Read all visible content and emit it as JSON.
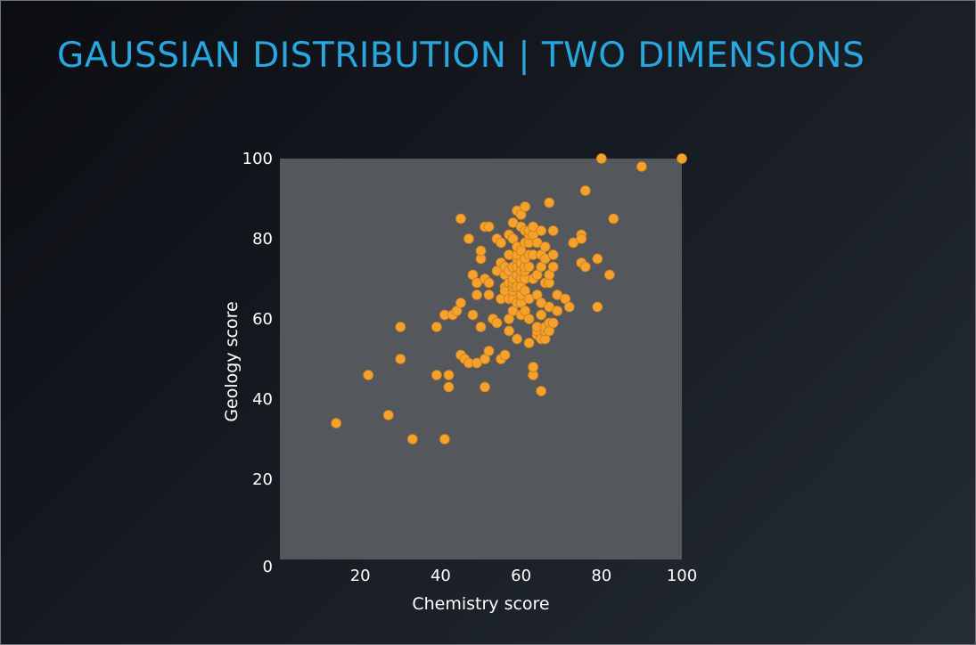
{
  "slide": {
    "title": "GAUSSIAN DISTRIBUTION | TWO DIMENSIONS"
  },
  "colors": {
    "title": "#27a7dd",
    "plot_background": "#54585d",
    "point_fill": "#f4a12e",
    "point_stroke": "#c97d17",
    "text": "#ffffff"
  },
  "chart_data": {
    "type": "scatter",
    "title": "",
    "xlabel": "Chemistry score",
    "ylabel": "Geology score",
    "xlim": [
      0,
      100
    ],
    "ylim": [
      0,
      100
    ],
    "x_ticks": [
      20,
      40,
      60,
      80,
      100
    ],
    "y_ticks": [
      20,
      40,
      60,
      80,
      100
    ],
    "origin_label": "0",
    "grid": false,
    "legend": "none",
    "x": [
      14,
      22,
      27,
      30,
      30,
      33,
      39,
      39,
      41,
      41,
      42,
      42,
      43,
      44,
      45,
      45,
      45,
      46,
      47,
      47,
      48,
      48,
      49,
      49,
      49,
      50,
      50,
      50,
      51,
      51,
      51,
      51,
      52,
      52,
      52,
      52,
      53,
      54,
      54,
      54,
      55,
      55,
      55,
      55,
      56,
      56,
      56,
      56,
      56,
      57,
      57,
      57,
      57,
      57,
      57,
      57,
      58,
      58,
      58,
      58,
      58,
      58,
      58,
      58,
      58,
      58,
      59,
      59,
      59,
      59,
      59,
      59,
      59,
      59,
      59,
      60,
      60,
      60,
      60,
      60,
      60,
      60,
      60,
      60,
      60,
      61,
      61,
      61,
      61,
      61,
      61,
      61,
      61,
      61,
      62,
      62,
      62,
      62,
      62,
      62,
      62,
      62,
      63,
      63,
      63,
      63,
      63,
      63,
      64,
      64,
      64,
      64,
      64,
      64,
      65,
      65,
      65,
      65,
      65,
      65,
      65,
      65,
      66,
      66,
      66,
      66,
      66,
      66,
      67,
      67,
      67,
      67,
      67,
      67,
      68,
      68,
      68,
      68,
      69,
      69,
      71,
      72,
      73,
      75,
      75,
      75,
      76,
      76,
      79,
      79,
      80,
      82,
      83,
      90,
      100
    ],
    "y": [
      34,
      46,
      36,
      58,
      50,
      30,
      46,
      58,
      61,
      30,
      43,
      46,
      61,
      62,
      64,
      51,
      85,
      50,
      49,
      80,
      71,
      61,
      66,
      69,
      49,
      75,
      77,
      58,
      43,
      50,
      70,
      83,
      66,
      69,
      83,
      52,
      60,
      72,
      59,
      80,
      74,
      79,
      50,
      65,
      68,
      71,
      73,
      51,
      67,
      72,
      76,
      81,
      57,
      60,
      65,
      69,
      80,
      62,
      65,
      67,
      68,
      69,
      70,
      73,
      84,
      80,
      71,
      73,
      75,
      76,
      78,
      87,
      55,
      64,
      68,
      64,
      66,
      70,
      72,
      74,
      77,
      83,
      86,
      68,
      61,
      62,
      67,
      70,
      72,
      73,
      75,
      79,
      82,
      88,
      65,
      73,
      76,
      79,
      81,
      82,
      60,
      54,
      70,
      76,
      81,
      83,
      46,
      48,
      66,
      71,
      79,
      56,
      57,
      58,
      61,
      64,
      73,
      76,
      82,
      61,
      42,
      55,
      55,
      57,
      58,
      69,
      75,
      78,
      63,
      59,
      69,
      71,
      89,
      57,
      76,
      73,
      59,
      82,
      62,
      66,
      65,
      63,
      79,
      81,
      74,
      80,
      73,
      92,
      75,
      63,
      100,
      71,
      85,
      98,
      100
    ]
  }
}
